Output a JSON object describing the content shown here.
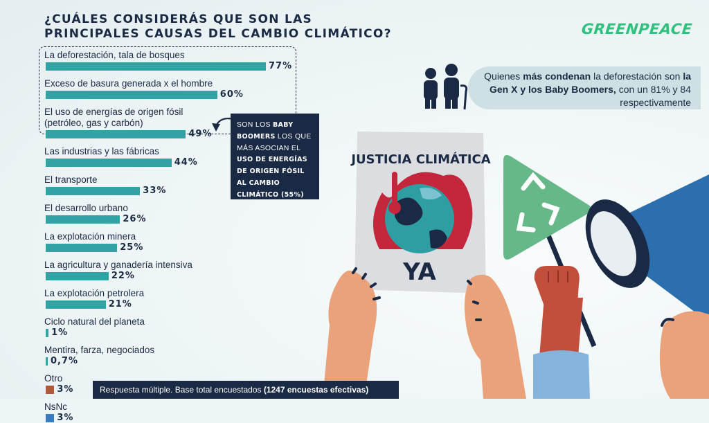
{
  "header": {
    "title_line1": "¿CUÁLES CONSIDERÁS QUE SON LAS",
    "title_line2": "PRINCIPALES CAUSAS DEL CAMBIO CLIMÁTICO?",
    "brand": "GREENPEACE"
  },
  "callout": {
    "p1": "SON LOS ",
    "b1": "BABY BOOMERS",
    "p2": " LOS QUE MÁS ASOCIAN EL ",
    "b2": "USO DE ENERGÍAS DE ORIGEN FÓSIL AL CAMBIO CLIMÁTICO (55%)"
  },
  "generation_note": {
    "t1": "Quienes ",
    "b1": "más condenan",
    "t2": " la deforestación son ",
    "b2": "la Gen X y los Baby Boomers,",
    "t3": " con un 81% y 84 respectivamente"
  },
  "poster": {
    "line1": "JUSTICIA CLIMÁTICA",
    "line2": "YA"
  },
  "footer": {
    "text": "Respuesta múltiple. Base total encuestados ",
    "bold": "(1247 encuestas efectivas)"
  },
  "colors": {
    "teal": "#32a3a5",
    "navy": "#1b2a44",
    "otro": "#b05a3c",
    "nsnc": "#3a7cc0",
    "brand": "#2ec27e"
  },
  "chart_data": {
    "type": "bar",
    "orientation": "horizontal",
    "categories": [
      "La deforestación, tala de bosques",
      "Exceso de basura generada x el hombre",
      "El uso de energías de origen fósil (petróleo, gas y carbón)",
      "Las industrias y las fábricas",
      "El transporte",
      "El desarrollo urbano",
      "La explotación minera",
      "La agricultura y ganadería intensiva",
      "La explotación petrolera",
      "Ciclo natural del planeta",
      "Mentira, farza, negociados",
      "Otro",
      "NsNc"
    ],
    "category_lines": [
      [
        "La deforestación, tala de bosques"
      ],
      [
        "Exceso de basura generada x el hombre"
      ],
      [
        "El uso de energías de origen fósil",
        "(petróleo, gas y carbón)"
      ],
      [
        "Las industrias y las fábricas"
      ],
      [
        "El transporte"
      ],
      [
        "El desarrollo urbano"
      ],
      [
        "La explotación minera"
      ],
      [
        "La agricultura y ganadería intensiva"
      ],
      [
        "La explotación petrolera"
      ],
      [
        "Ciclo natural del planeta"
      ],
      [
        "Mentira, farza, negociados"
      ],
      [
        "Otro"
      ],
      [
        "NsNc"
      ]
    ],
    "values": [
      77,
      60,
      49,
      44,
      33,
      26,
      25,
      22,
      21,
      1,
      0.7,
      3,
      3
    ],
    "value_labels": [
      "77%",
      "60%",
      "49%",
      "44%",
      "33%",
      "26%",
      "25%",
      "22%",
      "21%",
      "1%",
      "0,7%",
      "3%",
      "3%"
    ],
    "bar_colors": [
      "#32a3a5",
      "#32a3a5",
      "#32a3a5",
      "#32a3a5",
      "#32a3a5",
      "#32a3a5",
      "#32a3a5",
      "#32a3a5",
      "#32a3a5",
      "#32a3a5",
      "#32a3a5",
      "#b05a3c",
      "#3a7cc0"
    ],
    "xlim": [
      0,
      77
    ],
    "highlighted_categories": 3
  }
}
